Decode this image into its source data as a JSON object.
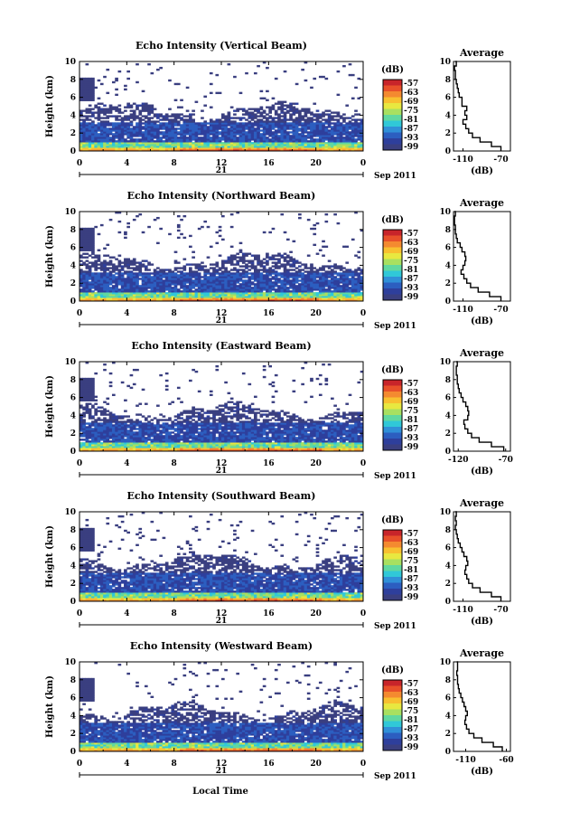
{
  "xlabel": "Local Time",
  "colorbar_unit": "(dB)",
  "colorbar_ticks": [
    "-57",
    "-63",
    "-69",
    "-75",
    "-81",
    "-87",
    "-93",
    "-99"
  ],
  "colorbar_colors": [
    "#c8242a",
    "#e8502a",
    "#f48a30",
    "#f8c030",
    "#e8e840",
    "#a8e060",
    "#60d8a0",
    "#30c8d8",
    "#3090d8",
    "#2c5ec0",
    "#2e3f9c",
    "#3a3f80"
  ],
  "date_day": "21",
  "date_month": "Sep 2011",
  "avg_title": "Average",
  "avg_xlabel": "(dB)",
  "chart_data": [
    {
      "type": "heatmap",
      "title": "Echo Intensity (Vertical Beam)",
      "ylabel": "Height (km)",
      "x_ticks": [
        "0",
        "4",
        "8",
        "12",
        "16",
        "20",
        "0"
      ],
      "y_ticks": [
        "0",
        "2",
        "4",
        "6",
        "8",
        "10"
      ],
      "xlim": [
        0,
        24
      ],
      "ylim": [
        0,
        10
      ],
      "zlim": [
        -99,
        -57
      ],
      "average_profile": {
        "type": "line",
        "xlim": [
          -120,
          -60
        ],
        "x_ticks": [
          "-110",
          "-70"
        ],
        "height_km": [
          0,
          0.5,
          1,
          1.5,
          2,
          2.5,
          3,
          3.5,
          4,
          4.5,
          5,
          5.5,
          6,
          6.5,
          7,
          7.5,
          8,
          8.5,
          9,
          9.5,
          10
        ],
        "db": [
          -70,
          -80,
          -92,
          -100,
          -104,
          -107,
          -110,
          -106,
          -108,
          -106,
          -111,
          -111,
          -114,
          -115,
          -116,
          -117,
          -118,
          -118,
          -119,
          -117,
          -118
        ]
      }
    },
    {
      "type": "heatmap",
      "title": "Echo Intensity (Northward Beam)",
      "ylabel": "Height (km)",
      "x_ticks": [
        "0",
        "4",
        "8",
        "12",
        "16",
        "20",
        "0"
      ],
      "y_ticks": [
        "0",
        "2",
        "4",
        "6",
        "8",
        "10"
      ],
      "xlim": [
        0,
        24
      ],
      "ylim": [
        0,
        10
      ],
      "zlim": [
        -99,
        -57
      ],
      "average_profile": {
        "type": "line",
        "xlim": [
          -120,
          -60
        ],
        "x_ticks": [
          "-110",
          "-70"
        ],
        "height_km": [
          0,
          0.5,
          1,
          1.5,
          2,
          2.5,
          3,
          3.5,
          4,
          4.5,
          5,
          5.5,
          6,
          6.5,
          7,
          7.5,
          8,
          8.5,
          9,
          9.5,
          10
        ],
        "db": [
          -70,
          -82,
          -94,
          -102,
          -106,
          -109,
          -112,
          -110,
          -108,
          -107,
          -108,
          -111,
          -113,
          -116,
          -117,
          -118,
          -118,
          -119,
          -119,
          -118,
          -119
        ]
      }
    },
    {
      "type": "heatmap",
      "title": "Echo Intensity (Eastward Beam)",
      "ylabel": "Height (km)",
      "x_ticks": [
        "0",
        "4",
        "8",
        "12",
        "16",
        "20",
        "0"
      ],
      "y_ticks": [
        "0",
        "2",
        "4",
        "6",
        "8",
        "10"
      ],
      "xlim": [
        0,
        24
      ],
      "ylim": [
        0,
        10
      ],
      "zlim": [
        -99,
        -57
      ],
      "average_profile": {
        "type": "line",
        "xlim": [
          -125,
          -65
        ],
        "x_ticks": [
          "-120",
          "-70"
        ],
        "height_km": [
          0,
          0.5,
          1,
          1.5,
          2,
          2.5,
          3,
          3.5,
          4,
          4.5,
          5,
          5.5,
          6,
          6.5,
          7,
          7.5,
          8,
          8.5,
          9,
          9.5,
          10
        ],
        "db": [
          -72,
          -85,
          -98,
          -106,
          -110,
          -113,
          -114,
          -110,
          -109,
          -110,
          -112,
          -115,
          -117,
          -119,
          -120,
          -121,
          -121,
          -122,
          -122,
          -121,
          -122
        ]
      }
    },
    {
      "type": "heatmap",
      "title": "Echo Intensity (Southward Beam)",
      "ylabel": "Height (km)",
      "x_ticks": [
        "0",
        "4",
        "8",
        "12",
        "16",
        "20",
        "0"
      ],
      "y_ticks": [
        "0",
        "2",
        "4",
        "6",
        "8",
        "10"
      ],
      "xlim": [
        0,
        24
      ],
      "ylim": [
        0,
        10
      ],
      "zlim": [
        -99,
        -57
      ],
      "average_profile": {
        "type": "line",
        "xlim": [
          -120,
          -60
        ],
        "x_ticks": [
          "-110",
          "-70"
        ],
        "height_km": [
          0,
          0.5,
          1,
          1.5,
          2,
          2.5,
          3,
          3.5,
          4,
          4.5,
          5,
          5.5,
          6,
          6.5,
          7,
          7.5,
          8,
          8.5,
          9,
          9.5,
          10
        ],
        "db": [
          -70,
          -80,
          -92,
          -100,
          -104,
          -106,
          -108,
          -107,
          -105,
          -106,
          -109,
          -111,
          -113,
          -115,
          -116,
          -117,
          -118,
          -117,
          -118,
          -117,
          -118
        ]
      }
    },
    {
      "type": "heatmap",
      "title": "Echo Intensity (Westward Beam)",
      "ylabel": "Height (km)",
      "x_ticks": [
        "0",
        "4",
        "8",
        "12",
        "16",
        "20",
        "0"
      ],
      "y_ticks": [
        "0",
        "2",
        "4",
        "6",
        "8",
        "10"
      ],
      "xlim": [
        0,
        24
      ],
      "ylim": [
        0,
        10
      ],
      "zlim": [
        -99,
        -57
      ],
      "average_profile": {
        "type": "line",
        "xlim": [
          -125,
          -55
        ],
        "x_ticks": [
          "-110",
          "-60"
        ],
        "height_km": [
          0,
          0.5,
          1,
          1.5,
          2,
          2.5,
          3,
          3.5,
          4,
          4.5,
          5,
          5.5,
          6,
          6.5,
          7,
          7.5,
          8,
          8.5,
          9,
          9.5,
          10
        ],
        "db": [
          -65,
          -76,
          -90,
          -100,
          -106,
          -109,
          -111,
          -110,
          -108,
          -110,
          -112,
          -114,
          -116,
          -118,
          -119,
          -120,
          -120,
          -121,
          -120,
          -120,
          -121
        ]
      }
    }
  ]
}
